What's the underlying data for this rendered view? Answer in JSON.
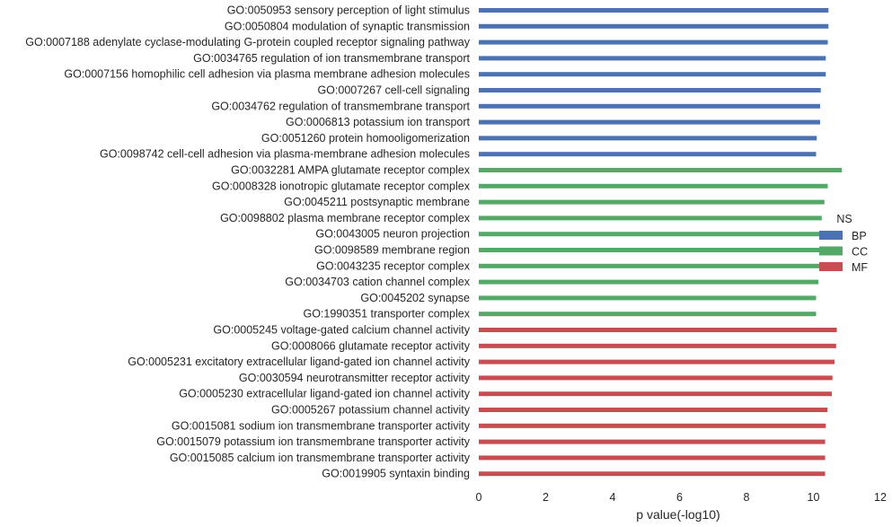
{
  "chart_data": {
    "type": "bar",
    "orientation": "horizontal",
    "xlabel": "p value(-log10)",
    "ylabel": "",
    "xlim": [
      0,
      12
    ],
    "xticks": [
      0,
      2,
      4,
      6,
      8,
      10,
      12
    ],
    "grid": false,
    "legend": {
      "title": "NS",
      "placement": "right",
      "entries": [
        {
          "name": "BP",
          "color": "#4c72b0"
        },
        {
          "name": "CC",
          "color": "#55a868"
        },
        {
          "name": "MF",
          "color": "#c44e52"
        }
      ]
    },
    "categories": [
      "GO:0050953 sensory perception of light stimulus",
      "GO:0050804 modulation of synaptic transmission",
      "GO:0007188 adenylate cyclase-modulating G-protein coupled receptor signaling pathway",
      "GO:0034765 regulation of ion transmembrane transport",
      "GO:0007156 homophilic cell adhesion via plasma membrane adhesion molecules",
      "GO:0007267 cell-cell signaling",
      "GO:0034762 regulation of transmembrane transport",
      "GO:0006813 potassium ion transport",
      "GO:0051260 protein homooligomerization",
      "GO:0098742 cell-cell adhesion via plasma-membrane adhesion molecules",
      "GO:0032281 AMPA glutamate receptor complex",
      "GO:0008328 ionotropic glutamate receptor complex",
      "GO:0045211 postsynaptic membrane",
      "GO:0098802 plasma membrane receptor complex",
      "GO:0043005 neuron projection",
      "GO:0098589 membrane region",
      "GO:0043235 receptor complex",
      "GO:0034703 cation channel complex",
      "GO:0045202 synapse",
      "GO:1990351 transporter complex",
      "GO:0005245 voltage-gated calcium channel activity",
      "GO:0008066 glutamate receptor activity",
      "GO:0005231 excitatory extracellular ligand-gated ion channel activity",
      "GO:0030594 neurotransmitter receptor activity",
      "GO:0005230 extracellular ligand-gated ion channel activity",
      "GO:0005267 potassium channel activity",
      "GO:0015081 sodium ion transmembrane transporter activity",
      "GO:0015079 potassium ion transmembrane transporter activity",
      "GO:0015085 calcium ion transmembrane transporter activity",
      "GO:0019905 syntaxin binding"
    ],
    "values": [
      10.45,
      10.45,
      10.43,
      10.37,
      10.37,
      10.22,
      10.2,
      10.2,
      10.1,
      10.08,
      10.85,
      10.43,
      10.33,
      10.25,
      10.22,
      10.2,
      10.2,
      10.15,
      10.08,
      10.08,
      10.7,
      10.68,
      10.63,
      10.57,
      10.55,
      10.42,
      10.37,
      10.35,
      10.35,
      10.35
    ],
    "groups": [
      "BP",
      "BP",
      "BP",
      "BP",
      "BP",
      "BP",
      "BP",
      "BP",
      "BP",
      "BP",
      "CC",
      "CC",
      "CC",
      "CC",
      "CC",
      "CC",
      "CC",
      "CC",
      "CC",
      "CC",
      "MF",
      "MF",
      "MF",
      "MF",
      "MF",
      "MF",
      "MF",
      "MF",
      "MF",
      "MF"
    ]
  }
}
